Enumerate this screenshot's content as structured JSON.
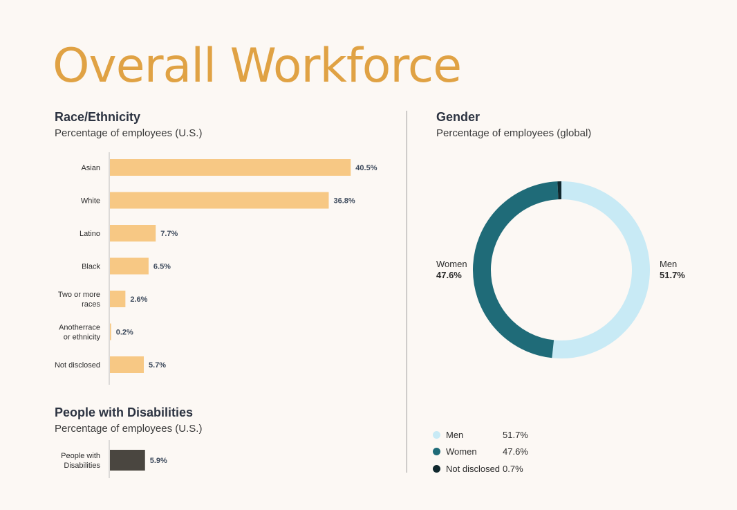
{
  "title": "Overall Workforce",
  "race": {
    "heading": "Race/Ethnicity",
    "subheading": "Percentage of employees (U.S.)"
  },
  "disabilities": {
    "heading": "People with Disabilities",
    "subheading": "Percentage of employees (U.S.)"
  },
  "gender": {
    "heading": "Gender",
    "subheading": "Percentage of employees (global)",
    "women_label": "Women",
    "women_value": "47.6%",
    "men_label": "Men",
    "men_value": "51.7%",
    "legend": [
      {
        "name": "Men",
        "value": "51.7%",
        "color": "#c8eaf5"
      },
      {
        "name": "Women",
        "value": "47.6%",
        "color": "#1f6b78"
      },
      {
        "name": "Not disclosed",
        "value": "0.7%",
        "color": "#10282e"
      }
    ]
  },
  "chart_data": [
    {
      "type": "bar",
      "orientation": "horizontal",
      "title": "Race/Ethnicity",
      "subtitle": "Percentage of employees (U.S.)",
      "categories": [
        [
          "Asian"
        ],
        [
          "White"
        ],
        [
          "Latino"
        ],
        [
          "Black"
        ],
        [
          "Two or more",
          "races"
        ],
        [
          "Anotherrace",
          "or ethnicity"
        ],
        [
          "Not disclosed"
        ]
      ],
      "values": [
        40.5,
        36.8,
        7.7,
        6.5,
        2.6,
        0.2,
        5.7
      ],
      "value_labels": [
        "40.5%",
        "36.8%",
        "7.7%",
        "6.5%",
        "2.6%",
        "0.2%",
        "5.7%"
      ],
      "color": "#f7c884"
    },
    {
      "type": "bar",
      "orientation": "horizontal",
      "title": "People with Disabilities",
      "subtitle": "Percentage of employees (U.S.)",
      "categories": [
        [
          "People with",
          "Disabilities"
        ]
      ],
      "values": [
        5.9
      ],
      "value_labels": [
        "5.9%"
      ],
      "color": "#4a4640"
    },
    {
      "type": "pie",
      "variant": "donut",
      "title": "Gender",
      "subtitle": "Percentage of employees (global)",
      "categories": [
        "Men",
        "Women",
        "Not disclosed"
      ],
      "values": [
        51.7,
        47.6,
        0.7
      ],
      "colors": [
        "#c8eaf5",
        "#1f6b78",
        "#10282e"
      ]
    }
  ]
}
